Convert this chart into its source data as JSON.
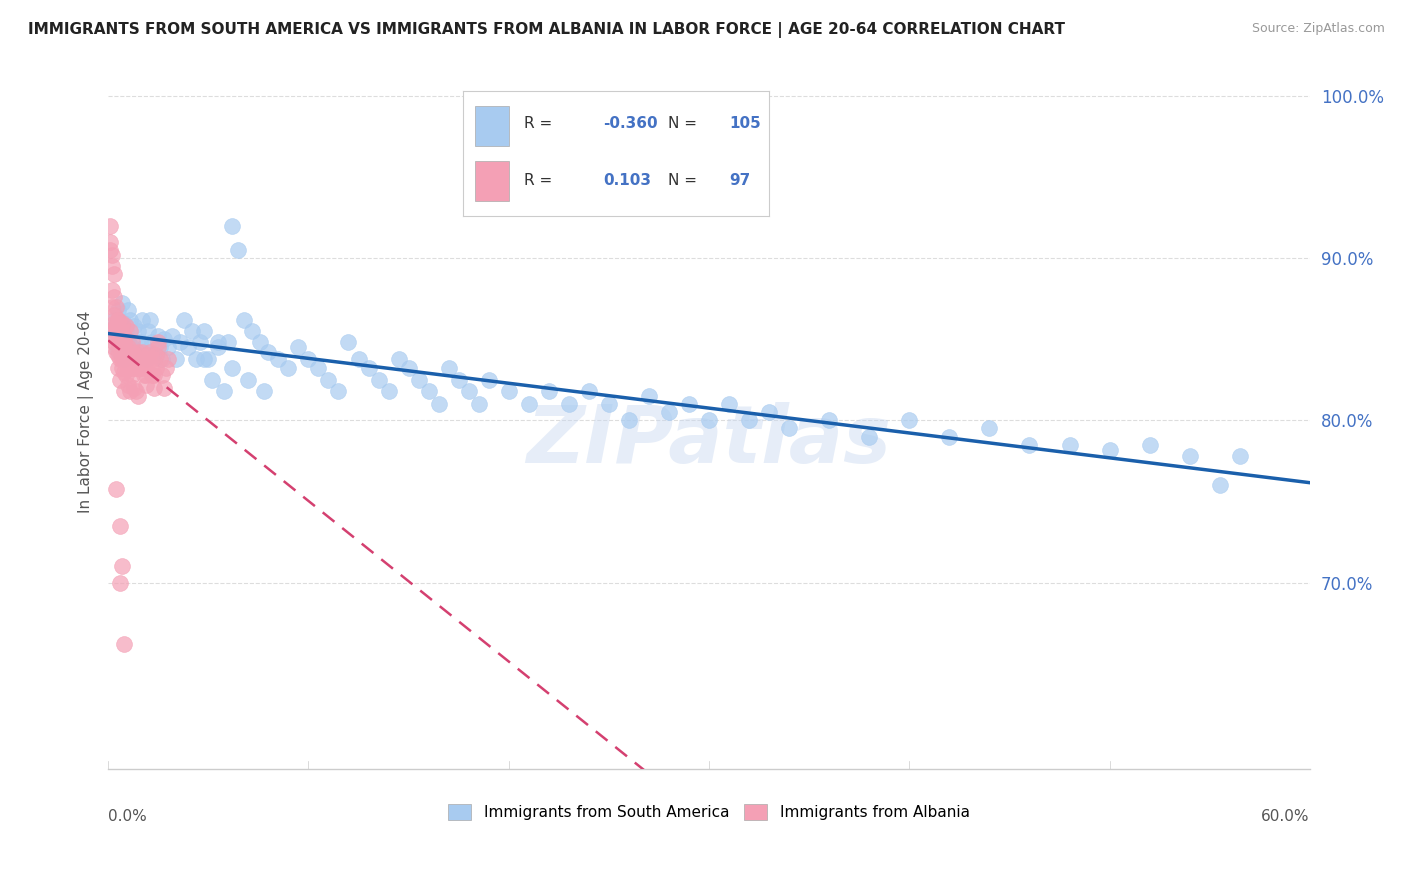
{
  "title": "IMMIGRANTS FROM SOUTH AMERICA VS IMMIGRANTS FROM ALBANIA IN LABOR FORCE | AGE 20-64 CORRELATION CHART",
  "source": "Source: ZipAtlas.com",
  "ylabel": "In Labor Force | Age 20-64",
  "xlim": [
    0.0,
    0.6
  ],
  "ylim": [
    0.585,
    1.025
  ],
  "color_blue": "#A8CBF0",
  "color_pink": "#F4A0B5",
  "color_blue_line": "#1A5FAB",
  "color_pink_line": "#D44070",
  "watermark": "ZIPatlas",
  "legend_R1": "-0.360",
  "legend_N1": "105",
  "legend_R2": "0.103",
  "legend_N2": "97",
  "south_america_x": [
    0.002,
    0.003,
    0.004,
    0.005,
    0.005,
    0.006,
    0.007,
    0.007,
    0.008,
    0.008,
    0.009,
    0.01,
    0.01,
    0.011,
    0.012,
    0.013,
    0.014,
    0.015,
    0.016,
    0.017,
    0.018,
    0.019,
    0.02,
    0.021,
    0.022,
    0.023,
    0.025,
    0.026,
    0.027,
    0.028,
    0.03,
    0.032,
    0.034,
    0.036,
    0.038,
    0.04,
    0.042,
    0.044,
    0.046,
    0.048,
    0.05,
    0.052,
    0.055,
    0.058,
    0.06,
    0.062,
    0.065,
    0.068,
    0.072,
    0.076,
    0.08,
    0.085,
    0.09,
    0.095,
    0.1,
    0.105,
    0.11,
    0.115,
    0.12,
    0.125,
    0.13,
    0.135,
    0.14,
    0.145,
    0.15,
    0.155,
    0.16,
    0.165,
    0.17,
    0.175,
    0.18,
    0.185,
    0.19,
    0.2,
    0.21,
    0.22,
    0.23,
    0.24,
    0.25,
    0.26,
    0.27,
    0.28,
    0.29,
    0.3,
    0.31,
    0.32,
    0.33,
    0.34,
    0.36,
    0.38,
    0.4,
    0.42,
    0.44,
    0.46,
    0.48,
    0.5,
    0.52,
    0.54,
    0.555,
    0.565,
    0.048,
    0.055,
    0.062,
    0.07,
    0.078
  ],
  "south_america_y": [
    0.856,
    0.862,
    0.851,
    0.868,
    0.843,
    0.858,
    0.872,
    0.845,
    0.86,
    0.838,
    0.855,
    0.868,
    0.848,
    0.862,
    0.845,
    0.858,
    0.84,
    0.855,
    0.848,
    0.862,
    0.845,
    0.838,
    0.855,
    0.862,
    0.848,
    0.84,
    0.852,
    0.845,
    0.838,
    0.85,
    0.845,
    0.852,
    0.838,
    0.848,
    0.862,
    0.845,
    0.855,
    0.838,
    0.848,
    0.855,
    0.838,
    0.825,
    0.845,
    0.818,
    0.848,
    0.92,
    0.905,
    0.862,
    0.855,
    0.848,
    0.842,
    0.838,
    0.832,
    0.845,
    0.838,
    0.832,
    0.825,
    0.818,
    0.848,
    0.838,
    0.832,
    0.825,
    0.818,
    0.838,
    0.832,
    0.825,
    0.818,
    0.81,
    0.832,
    0.825,
    0.818,
    0.81,
    0.825,
    0.818,
    0.81,
    0.818,
    0.81,
    0.818,
    0.81,
    0.8,
    0.815,
    0.805,
    0.81,
    0.8,
    0.81,
    0.8,
    0.805,
    0.795,
    0.8,
    0.79,
    0.8,
    0.79,
    0.795,
    0.785,
    0.785,
    0.782,
    0.785,
    0.778,
    0.76,
    0.778,
    0.838,
    0.848,
    0.832,
    0.825,
    0.818
  ],
  "albania_x": [
    0.001,
    0.001,
    0.001,
    0.002,
    0.002,
    0.002,
    0.002,
    0.003,
    0.003,
    0.003,
    0.003,
    0.004,
    0.004,
    0.004,
    0.004,
    0.005,
    0.005,
    0.005,
    0.005,
    0.006,
    0.006,
    0.006,
    0.007,
    0.007,
    0.007,
    0.008,
    0.008,
    0.008,
    0.009,
    0.009,
    0.01,
    0.01,
    0.011,
    0.011,
    0.012,
    0.012,
    0.013,
    0.013,
    0.014,
    0.014,
    0.015,
    0.015,
    0.016,
    0.017,
    0.018,
    0.019,
    0.02,
    0.021,
    0.022,
    0.023,
    0.024,
    0.025,
    0.026,
    0.027,
    0.028,
    0.029,
    0.03,
    0.002,
    0.003,
    0.004,
    0.005,
    0.006,
    0.007,
    0.008,
    0.009,
    0.01,
    0.011,
    0.012,
    0.013,
    0.014,
    0.015,
    0.016,
    0.017,
    0.018,
    0.019,
    0.02,
    0.021,
    0.022,
    0.023,
    0.024,
    0.025,
    0.003,
    0.004,
    0.005,
    0.006,
    0.007,
    0.008,
    0.009,
    0.01,
    0.011,
    0.012,
    0.013,
    0.006,
    0.007,
    0.008,
    0.004,
    0.006
  ],
  "albania_y": [
    0.92,
    0.905,
    0.91,
    0.895,
    0.88,
    0.902,
    0.87,
    0.876,
    0.86,
    0.89,
    0.845,
    0.858,
    0.842,
    0.87,
    0.855,
    0.862,
    0.848,
    0.832,
    0.858,
    0.85,
    0.838,
    0.825,
    0.842,
    0.858,
    0.832,
    0.848,
    0.83,
    0.818,
    0.842,
    0.828,
    0.838,
    0.822,
    0.832,
    0.818,
    0.842,
    0.828,
    0.838,
    0.82,
    0.832,
    0.818,
    0.842,
    0.815,
    0.832,
    0.842,
    0.828,
    0.822,
    0.838,
    0.842,
    0.828,
    0.82,
    0.832,
    0.845,
    0.838,
    0.828,
    0.82,
    0.832,
    0.838,
    0.856,
    0.848,
    0.852,
    0.84,
    0.845,
    0.838,
    0.845,
    0.838,
    0.832,
    0.84,
    0.832,
    0.838,
    0.832,
    0.84,
    0.832,
    0.838,
    0.832,
    0.828,
    0.84,
    0.832,
    0.838,
    0.828,
    0.84,
    0.848,
    0.865,
    0.858,
    0.862,
    0.855,
    0.86,
    0.852,
    0.858,
    0.845,
    0.855,
    0.848,
    0.84,
    0.7,
    0.71,
    0.662,
    0.758,
    0.735
  ]
}
